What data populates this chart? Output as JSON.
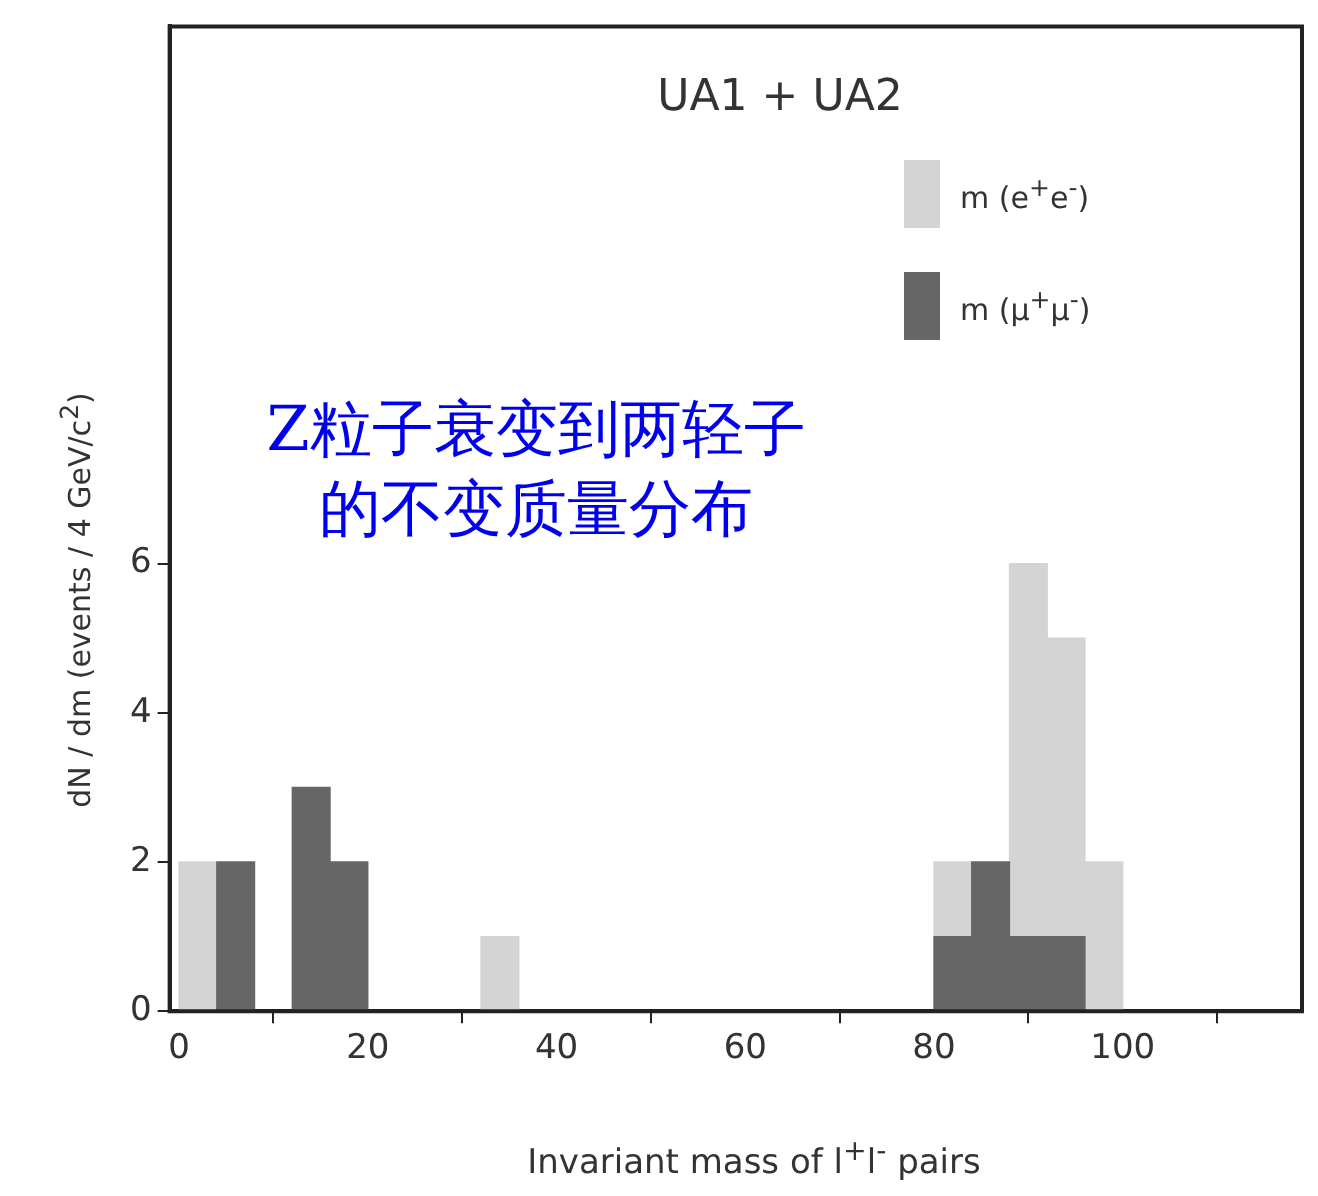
{
  "chart_data": {
    "type": "bar",
    "title": "UA1 + UA2",
    "xlabel": "Invariant mass of l$^{+}$l$^{-}$ pairs",
    "ylabel": "dN / dm (events / 4 GeV/c$^{2}$)",
    "annotations": [
      "Z粒子衰变到两轻子的不变质量分布"
    ],
    "x": [
      2,
      6,
      10,
      14,
      18,
      22,
      26,
      30,
      34,
      38,
      42,
      46,
      50,
      54,
      58,
      62,
      66,
      70,
      74,
      78,
      82,
      86,
      90,
      94,
      98
    ],
    "stacked": true,
    "series": [
      {
        "name": "m (μ$^{+}$μ$^{-}$)",
        "color": "#666666",
        "values": [
          0,
          2,
          0,
          3,
          2,
          0,
          0,
          0,
          0,
          0,
          0,
          0,
          0,
          0,
          0,
          0,
          0,
          0,
          0,
          0,
          1,
          2,
          1,
          1,
          0
        ]
      },
      {
        "name": "m (e$^{+}$e$^{-}$)",
        "color": "#d4d4d4",
        "values": [
          2,
          0,
          0,
          0,
          0,
          0,
          0,
          0,
          1,
          0,
          0,
          0,
          0,
          0,
          0,
          0,
          0,
          0,
          0,
          0,
          1,
          0,
          5,
          4,
          2
        ]
      }
    ],
    "xlim": [
      -1,
      119
    ],
    "xticks": [
      0,
      20,
      40,
      60,
      80,
      100
    ],
    "ylim": [
      0,
      13.2
    ],
    "yticks": [
      0,
      2,
      4,
      6
    ],
    "grid": false,
    "legend": "top right"
  }
}
